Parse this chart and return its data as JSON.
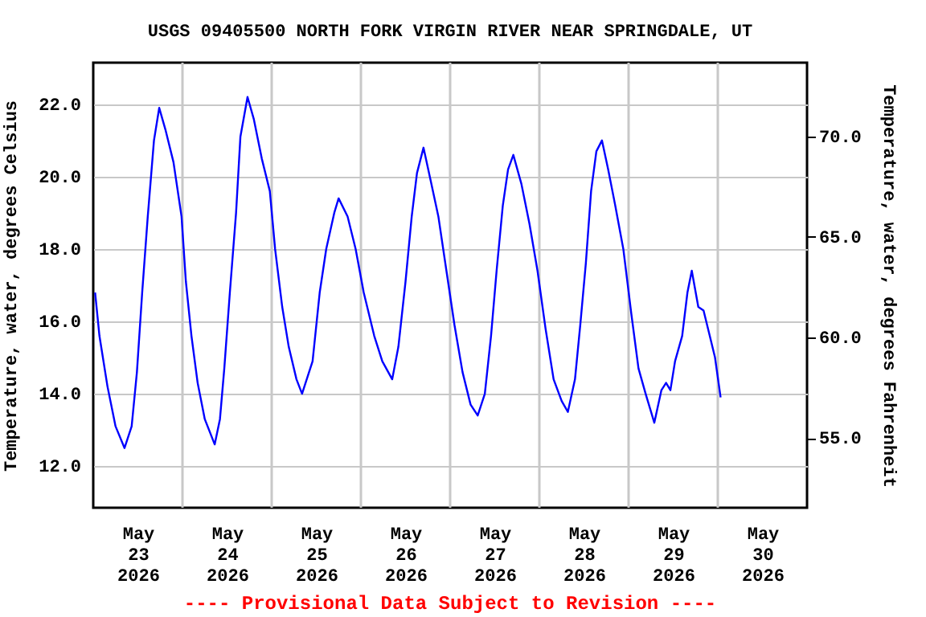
{
  "chart_data": {
    "type": "line",
    "title": "USGS 09405500 NORTH FORK VIRGIN RIVER NEAR SPRINGDALE, UT",
    "ylabel": "Temperature, water, degrees Celsius",
    "y2label": "Temperature, water, degrees Fahrenheit",
    "annotations": [
      "---- Provisional Data Subject to Revision ----"
    ],
    "x": [
      "2026-05-23T00:30",
      "2026-05-23T01:40",
      "2026-05-23T03:50",
      "2026-05-23T06:00",
      "2026-05-23T08:25",
      "2026-05-23T10:20",
      "2026-05-23T11:45",
      "2026-05-23T13:10",
      "2026-05-23T14:40",
      "2026-05-23T16:20",
      "2026-05-23T17:45",
      "2026-05-23T19:25",
      "2026-05-23T21:35",
      "2026-05-23T23:45",
      "2026-05-24T00:55",
      "2026-05-24T02:25",
      "2026-05-24T04:05",
      "2026-05-24T06:00",
      "2026-05-24T08:40",
      "2026-05-24T10:05",
      "2026-05-24T11:15",
      "2026-05-24T12:45",
      "2026-05-24T14:25",
      "2026-05-24T15:35",
      "2026-05-24T17:30",
      "2026-05-24T19:10",
      "2026-05-24T21:20",
      "2026-05-24T23:30",
      "2026-05-25T00:55",
      "2026-05-25T02:50",
      "2026-05-25T04:35",
      "2026-05-25T06:40",
      "2026-05-25T08:10",
      "2026-05-25T11:00",
      "2026-05-25T12:55",
      "2026-05-25T14:40",
      "2026-05-25T16:50",
      "2026-05-25T18:00",
      "2026-05-25T20:25",
      "2026-05-25T22:35",
      "2026-05-26T00:45",
      "2026-05-26T03:35",
      "2026-05-26T05:45",
      "2026-05-26T08:25",
      "2026-05-26T10:05",
      "2026-05-26T12:00",
      "2026-05-26T13:40",
      "2026-05-26T15:05",
      "2026-05-26T16:50",
      "2026-05-26T18:45",
      "2026-05-26T20:50",
      "2026-05-26T23:00",
      "2026-05-27T01:10",
      "2026-05-27T03:20",
      "2026-05-27T05:30",
      "2026-05-27T07:25",
      "2026-05-27T09:20",
      "2026-05-27T11:00",
      "2026-05-27T12:30",
      "2026-05-27T14:10",
      "2026-05-27T15:35",
      "2026-05-27T17:00",
      "2026-05-27T19:10",
      "2026-05-27T21:20",
      "2026-05-27T23:30",
      "2026-05-28T01:40",
      "2026-05-28T03:50",
      "2026-05-28T06:00",
      "2026-05-28T07:40",
      "2026-05-28T09:35",
      "2026-05-28T11:00",
      "2026-05-28T12:30",
      "2026-05-28T13:55",
      "2026-05-28T15:20",
      "2026-05-28T16:50",
      "2026-05-28T18:30",
      "2026-05-28T20:25",
      "2026-05-28T22:35",
      "2026-05-29T00:45",
      "2026-05-29T02:40",
      "2026-05-29T04:35",
      "2026-05-29T06:55",
      "2026-05-29T08:50",
      "2026-05-29T10:05",
      "2026-05-29T11:15",
      "2026-05-29T12:30",
      "2026-05-29T14:25",
      "2026-05-29T15:50",
      "2026-05-29T17:00",
      "2026-05-29T18:45",
      "2026-05-29T20:10",
      "2026-05-29T21:50",
      "2026-05-29T23:15",
      "2026-05-30T00:45"
    ],
    "series": [
      {
        "color": "#0000ff",
        "values": [
          16.8,
          15.6,
          14.2,
          13.1,
          12.5,
          13.1,
          14.6,
          16.8,
          18.9,
          21.0,
          21.9,
          21.3,
          20.4,
          18.9,
          17.1,
          15.6,
          14.3,
          13.3,
          12.6,
          13.3,
          14.7,
          16.8,
          19.0,
          21.1,
          22.2,
          21.6,
          20.5,
          19.6,
          18.0,
          16.4,
          15.3,
          14.4,
          14.0,
          14.9,
          16.8,
          18.0,
          19.0,
          19.4,
          18.9,
          18.0,
          16.8,
          15.6,
          14.9,
          14.4,
          15.3,
          17.1,
          18.9,
          20.1,
          20.8,
          19.9,
          18.9,
          17.4,
          15.9,
          14.6,
          13.7,
          13.4,
          14.0,
          15.6,
          17.4,
          19.2,
          20.2,
          20.6,
          19.8,
          18.7,
          17.4,
          15.8,
          14.4,
          13.8,
          13.5,
          14.4,
          15.9,
          17.6,
          19.6,
          20.7,
          21.0,
          20.2,
          19.2,
          18.0,
          16.2,
          14.7,
          14.0,
          13.2,
          14.1,
          14.3,
          14.1,
          14.9,
          15.6,
          16.8,
          17.4,
          16.4,
          16.3,
          15.6,
          15.0,
          13.9
        ]
      }
    ],
    "xlim": [
      "2026-05-23T00:00",
      "2026-05-31T00:00"
    ],
    "xticks": [
      {
        "value": "2026-05-23T12:00",
        "label": "May 23 2026"
      },
      {
        "value": "2026-05-24T12:00",
        "label": "May 24 2026"
      },
      {
        "value": "2026-05-25T12:00",
        "label": "May 25 2026"
      },
      {
        "value": "2026-05-26T12:00",
        "label": "May 26 2026"
      },
      {
        "value": "2026-05-27T12:00",
        "label": "May 27 2026"
      },
      {
        "value": "2026-05-28T12:00",
        "label": "May 28 2026"
      },
      {
        "value": "2026-05-29T12:00",
        "label": "May 29 2026"
      },
      {
        "value": "2026-05-30T12:00",
        "label": "May 30 2026"
      },
      {
        "value": "2026-05-24T00:00",
        "label": null
      },
      {
        "value": "2026-05-25T00:00",
        "label": null
      },
      {
        "value": "2026-05-26T00:00",
        "label": null
      },
      {
        "value": "2026-05-27T00:00",
        "label": null
      },
      {
        "value": "2026-05-28T00:00",
        "label": null
      },
      {
        "value": "2026-05-29T00:00",
        "label": null
      },
      {
        "value": "2026-05-30T00:00",
        "label": null
      }
    ],
    "ylim": [
      10.85,
      23.15
    ],
    "yticks": [
      {
        "value": 12,
        "label": "12.0"
      },
      {
        "value": 14,
        "label": "14.0"
      },
      {
        "value": 16,
        "label": "16.0"
      },
      {
        "value": 18,
        "label": "18.0"
      },
      {
        "value": 20,
        "label": "20.0"
      },
      {
        "value": 22,
        "label": "22.0"
      }
    ],
    "y2lim": [
      51.53,
      73.67
    ],
    "y2ticks": [
      {
        "value": 55,
        "label": "55.0"
      },
      {
        "value": 60,
        "label": "60.0"
      },
      {
        "value": 65,
        "label": "65.0"
      },
      {
        "value": 70,
        "label": "70.0"
      }
    ],
    "grid": true,
    "marker": "none",
    "line_style": "solid"
  }
}
